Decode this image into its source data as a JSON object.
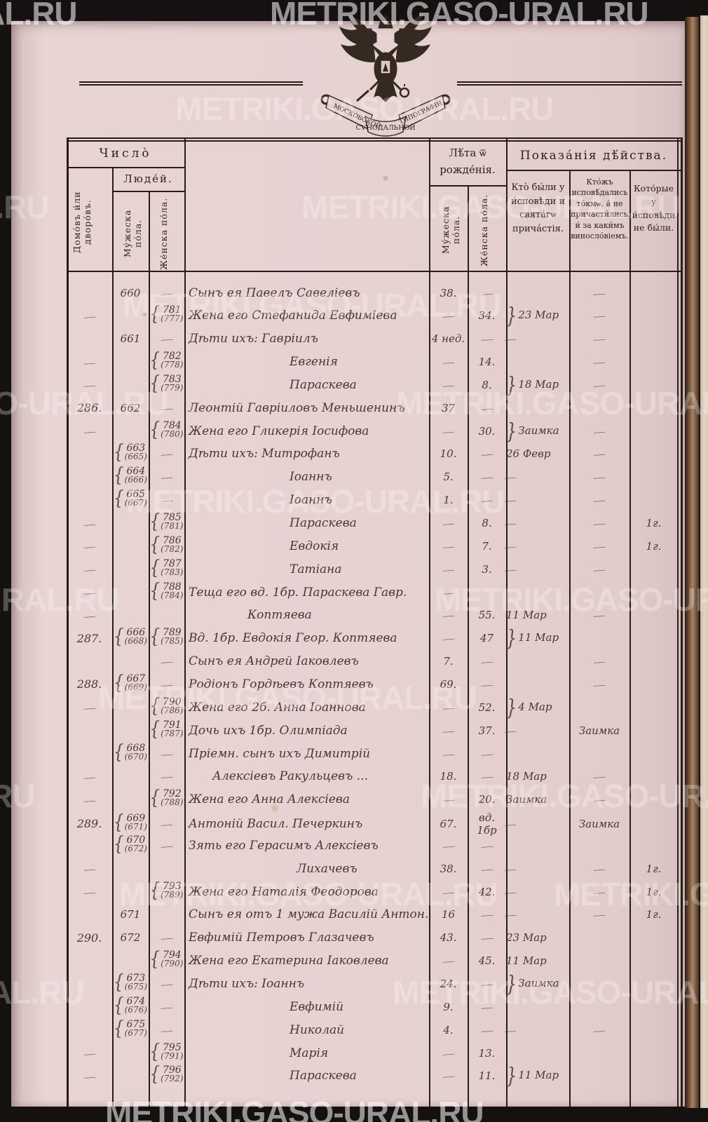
{
  "watermark": {
    "text": "METRIKI.GASO-URAL.RU"
  },
  "emblem": {
    "ribbon_left": "МОСКОВСКОЙ",
    "ribbon_center": "СѴНОДАЛЬНОЙ",
    "ribbon_right": "ТИПОГРАФІИ"
  },
  "header": {
    "chislo": "Число̀",
    "lyudej": "Люде́й.",
    "domov": "Домо́въ и́ли дворо́въ.",
    "muzheska": "Му́жеска по́ла.",
    "zhenska": "Же́нска по́ла.",
    "leta": "Лѣ́та ѿ рожде́нія.",
    "leta_muzheska": "Му́жеска по́ла.",
    "leta_zhenska": "Же́нска по́ла.",
    "pokazaniya": "Показа́нія дѣ́йства.",
    "conf1": "Кто̀ бы́ли у и́сповѣди и свята́гѡ прича́стія.",
    "conf2": "Кто́жъ исповѣ́дались то́кмѡ, а́ не причасти́лись, и́ за каки́мъ виносло́віемъ.",
    "conf3": "Кото́рые у и́сповѣди не бы́ли."
  },
  "colors": {
    "paper": "#e6d2d1",
    "printed_ink": "#2c221c",
    "handwriting_ink": "#483731",
    "border_black": "#151111",
    "gutter_brown": "#7a5a3e"
  },
  "rows": [
    {
      "m": "660",
      "f": "—",
      "n": "Сынъ ея Павелъ Савеліевъ",
      "ma": "38.",
      "fa": "—",
      "c2": "—"
    },
    {
      "h": "—",
      "f": "781",
      "f2": "(777)",
      "n": "Жена его Стефанида Евфиміева",
      "ma": "—",
      "fa": "34.",
      "b": true,
      "c1": "23 Мар",
      "c2": "—"
    },
    {
      "m": "661",
      "f": "—",
      "n": "Дѣти ихъ: Гавріилъ",
      "ma": "4 нед.",
      "fa": "—",
      "c1": "—",
      "c2": "—"
    },
    {
      "h": "—",
      "f": "782",
      "f2": "(778)",
      "n": "Евгенія",
      "ind": 150,
      "ma": "—",
      "fa": "14.",
      "c2": "—"
    },
    {
      "h": "—",
      "f": "783",
      "f2": "(779)",
      "n": "Параскева",
      "ind": 150,
      "ma": "—",
      "fa": "8.",
      "b": true,
      "c1": "18 Мар",
      "c2": "—"
    },
    {
      "h": "286.",
      "m": "662",
      "f": "—",
      "n": "Леонтій Гавріиловъ Меньшенинъ",
      "ma": "37",
      "fa": "—"
    },
    {
      "h": "—",
      "f": "784",
      "f2": "(780)",
      "n": "Жена его Гликерія Іосифова",
      "ma": "—",
      "fa": "30.",
      "b": true,
      "c1": "Заимка",
      "c2": "—"
    },
    {
      "m": "663",
      "m2": "(665)",
      "f": "—",
      "n": "Дѣти ихъ: Митрофанъ",
      "ma": "10.",
      "fa": "—",
      "c1": "26 Февр",
      "c2": "—"
    },
    {
      "m": "664",
      "m2": "(666)",
      "f": "—",
      "n": "Іоаннъ",
      "ind": 150,
      "ma": "5.",
      "fa": "—",
      "c1": "—",
      "c2": "—"
    },
    {
      "m": "665",
      "m2": "(667)",
      "f": "—",
      "n": "Іоаннъ",
      "ind": 150,
      "ma": "1.",
      "fa": "—",
      "c1": "—",
      "c2": "—"
    },
    {
      "h": "—",
      "f": "785",
      "f2": "(781)",
      "n": "Параскева",
      "ind": 150,
      "ma": "—",
      "fa": "8.",
      "c1": "—",
      "c2": "—",
      "c3": "1г."
    },
    {
      "h": "—",
      "f": "786",
      "f2": "(782)",
      "n": "Евдокія",
      "ind": 150,
      "ma": "—",
      "fa": "7.",
      "c1": "—",
      "c2": "—",
      "c3": "1г."
    },
    {
      "h": "—",
      "f": "787",
      "f2": "(783)",
      "n": "Татіана",
      "ind": 150,
      "ma": "—",
      "fa": "3.",
      "c1": "—",
      "c2": "—"
    },
    {
      "h": "—",
      "f": "788",
      "f2": "(784)",
      "n": "Теща его вд. 1бр. Параскева Гавр.",
      "ma": "—"
    },
    {
      "h": "—",
      "n": "Коптяева",
      "ind": 90,
      "ma": "—",
      "fa": "55.",
      "c1": "11 Мар",
      "c2": "—"
    },
    {
      "h": "287.",
      "m": "666",
      "m2": "(668)",
      "f": "789",
      "f2": "(785)",
      "n": "Вд. 1бр. Евдокія Геор. Коптяева",
      "ma": "—",
      "fa": "47",
      "b": true,
      "c1": "11 Мар"
    },
    {
      "f": "—",
      "n": "Сынъ ея Андрей Іаковлевъ",
      "ma": "7.",
      "fa": "—",
      "c2": "—"
    },
    {
      "h": "288.",
      "m": "667",
      "m2": "(669)",
      "f": "—",
      "n": "Родіонъ Гордѣевъ Коптяевъ",
      "ma": "69.",
      "fa": "—",
      "c2": "—"
    },
    {
      "h": "—",
      "f": "790",
      "f2": "(786)",
      "n": "Жена его 2б. Анна Іоаннова",
      "ma": "—",
      "fa": "52.",
      "b": true,
      "c1": "4 Мар"
    },
    {
      "f": "791",
      "f2": "(787)",
      "n": "Дочь ихъ 1бр. Олимпіада",
      "ma": "—",
      "fa": "37.",
      "c1": "—",
      "c2": "Заимка"
    },
    {
      "m": "668",
      "m2": "(670)",
      "f": "—",
      "n": "Пріемн. сынъ ихъ Димитрій",
      "ma": "—",
      "fa": "—"
    },
    {
      "h": "—",
      "f": "—",
      "n": "Алексіевъ Ракульцевъ ...",
      "ind": 40,
      "ma": "18.",
      "fa": "—",
      "c1": "18 Мар",
      "c2": "—"
    },
    {
      "h": "—",
      "f": "792",
      "f2": "(788)",
      "n": "Жена его Анна Алексіева",
      "ma": "—",
      "fa": "20.",
      "c1": "Заимка",
      "c2": "—"
    },
    {
      "h": "289.",
      "m": "669",
      "m2": "(671)",
      "f": "—",
      "n": "Антоній Васил. Печеркинъ",
      "ma": "67.",
      "fa": "вд. 1бр",
      "c1": "—",
      "c2": "Заимка"
    },
    {
      "m": "670",
      "m2": "(672)",
      "f": "—",
      "n": "Зять его Герасимъ Алексіевъ",
      "ma": "—",
      "fa": "—"
    },
    {
      "h": "—",
      "n": "Лихачевъ",
      "ind": 160,
      "ma": "38.",
      "fa": "—",
      "c1": "—",
      "c2": "—",
      "c3": "1г."
    },
    {
      "h": "—",
      "f": "793",
      "f2": "(789)",
      "n": "Жена его Наталія Феодорова",
      "ma": "—",
      "fa": "42.",
      "c1": "—",
      "c2": "—",
      "c3": "1г."
    },
    {
      "m": "671",
      "n": "Сынъ ея отъ 1 мужа Василій Антон.",
      "ma": "16",
      "fa": "—",
      "c1": "—",
      "c2": "—",
      "c3": "1г."
    },
    {
      "h": "290.",
      "m": "672",
      "f": "—",
      "n": "Евфимій Петровъ Глазачевъ",
      "ma": "43.",
      "fa": "—",
      "c1": "23 Мар"
    },
    {
      "f": "794",
      "f2": "(790)",
      "n": "Жена его Екатерина Іаковлева",
      "ma": "—",
      "fa": "45.",
      "c1": "11 Мар"
    },
    {
      "m": "673",
      "m2": "(675)",
      "f": "—",
      "n": "Дѣти ихъ: Іоаннъ",
      "ma": "24.",
      "fa": "—",
      "b": true,
      "c1": "Заимка"
    },
    {
      "m": "674",
      "m2": "(676)",
      "f": "—",
      "n": "Евфимій",
      "ind": 150,
      "ma": "9.",
      "fa": "—"
    },
    {
      "m": "675",
      "m2": "(677)",
      "f": "—",
      "n": "Николай",
      "ind": 150,
      "ma": "4.",
      "fa": "—",
      "c1": "—",
      "c2": "—"
    },
    {
      "h": "—",
      "f": "795",
      "f2": "(791)",
      "n": "Марія",
      "ind": 150,
      "ma": "—",
      "fa": "13."
    },
    {
      "h": "—",
      "f": "796",
      "f2": "(792)",
      "n": "Параскева",
      "ind": 150,
      "ma": "—",
      "fa": "11.",
      "b": true,
      "c1": "11 Мар"
    }
  ]
}
